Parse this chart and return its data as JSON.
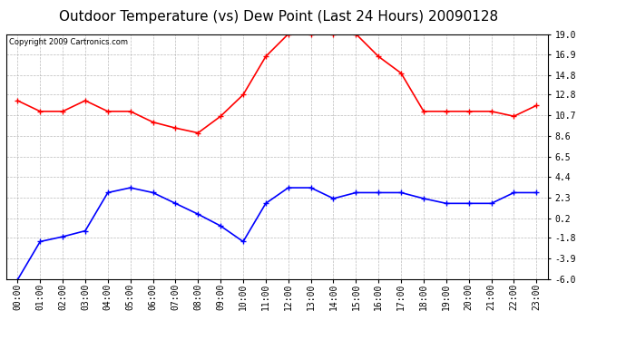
{
  "title": "Outdoor Temperature (vs) Dew Point (Last 24 Hours) 20090128",
  "copyright_text": "Copyright 2009 Cartronics.com",
  "hours": [
    "00:00",
    "01:00",
    "02:00",
    "03:00",
    "04:00",
    "05:00",
    "06:00",
    "07:00",
    "08:00",
    "09:00",
    "10:00",
    "11:00",
    "12:00",
    "13:00",
    "14:00",
    "15:00",
    "16:00",
    "17:00",
    "18:00",
    "19:00",
    "20:00",
    "21:00",
    "22:00",
    "23:00"
  ],
  "temp_data": [
    12.2,
    11.1,
    11.1,
    12.2,
    11.1,
    11.1,
    10.0,
    9.4,
    8.9,
    10.6,
    12.8,
    16.7,
    19.0,
    19.0,
    19.0,
    19.0,
    16.7,
    15.0,
    11.1,
    11.1,
    11.1,
    11.1,
    10.6,
    11.7
  ],
  "dew_data": [
    -6.1,
    -2.2,
    -1.7,
    -1.1,
    2.8,
    3.3,
    2.8,
    1.7,
    0.6,
    -0.6,
    -2.2,
    1.7,
    3.3,
    3.3,
    2.2,
    2.8,
    2.8,
    2.8,
    2.2,
    1.7,
    1.7,
    1.7,
    2.8,
    2.8
  ],
  "temp_color": "#ff0000",
  "dew_color": "#0000ff",
  "bg_color": "#ffffff",
  "plot_bg_color": "#ffffff",
  "grid_color": "#aaaaaa",
  "ylim_min": -6.0,
  "ylim_max": 19.0,
  "yticks": [
    19.0,
    16.9,
    14.8,
    12.8,
    10.7,
    8.6,
    6.5,
    4.4,
    2.3,
    0.2,
    -1.8,
    -3.9,
    -6.0
  ],
  "title_fontsize": 11,
  "copyright_fontsize": 6,
  "tick_fontsize": 7,
  "marker": "+",
  "marker_size": 4,
  "linewidth": 1.2
}
